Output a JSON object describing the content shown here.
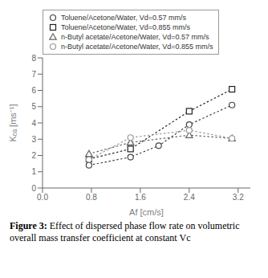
{
  "chart_data": {
    "type": "line",
    "xlabel": "Af [cm/s]",
    "ylabel": "Kₒₐ [ms⁻¹]",
    "annotations": [
      "Figure 3:",
      "Effect of dispersed phase flow rate on volumetric overall mass transfer coefficient at constant Vc"
    ],
    "xlim": [
      0,
      3.4
    ],
    "ylim": [
      0,
      8
    ],
    "xticks": [
      {
        "value": 0,
        "label": "0.0"
      },
      0.8,
      1.6,
      2.4,
      3.2
    ],
    "yticks": [
      0,
      1,
      2,
      3,
      4,
      5,
      6,
      7,
      8
    ],
    "grid": false,
    "legend": "upper left",
    "series": [
      {
        "name": "Toluene/Acetone/Water, Vd=0.57 mm/s",
        "color": "#444444",
        "marker": "circle",
        "line_style": "dotted",
        "x": [
          0.76,
          1.44,
          1.9,
          2.4,
          3.1
        ],
        "values": [
          1.4,
          1.9,
          2.6,
          3.9,
          5.1
        ]
      },
      {
        "name": "Toluene/Acetone/Water, Vd=0.855 mm/s",
        "color": "#222222",
        "marker": "square",
        "line_style": "dotted",
        "x": [
          0.76,
          1.44,
          2.4,
          3.1
        ],
        "values": [
          1.78,
          2.4,
          4.72,
          6.07
        ]
      },
      {
        "name": "n-Butyl acetate/Acetone/Water, Vd=0.57 mm/s",
        "color": "#666666",
        "marker": "triangle",
        "line_style": "dotted",
        "x": [
          0.76,
          1.44,
          2.4,
          3.1
        ],
        "values": [
          2.1,
          2.8,
          3.25,
          3.05
        ]
      },
      {
        "name": "n-Butyl acetate/Acetone/Water, Vd=0.855 mm/s",
        "color": "#999999",
        "marker": "circle",
        "line_style": "dotted",
        "x": [
          0.76,
          1.44,
          2.4,
          3.1
        ],
        "values": [
          1.75,
          3.1,
          3.55,
          3.05
        ]
      }
    ]
  }
}
